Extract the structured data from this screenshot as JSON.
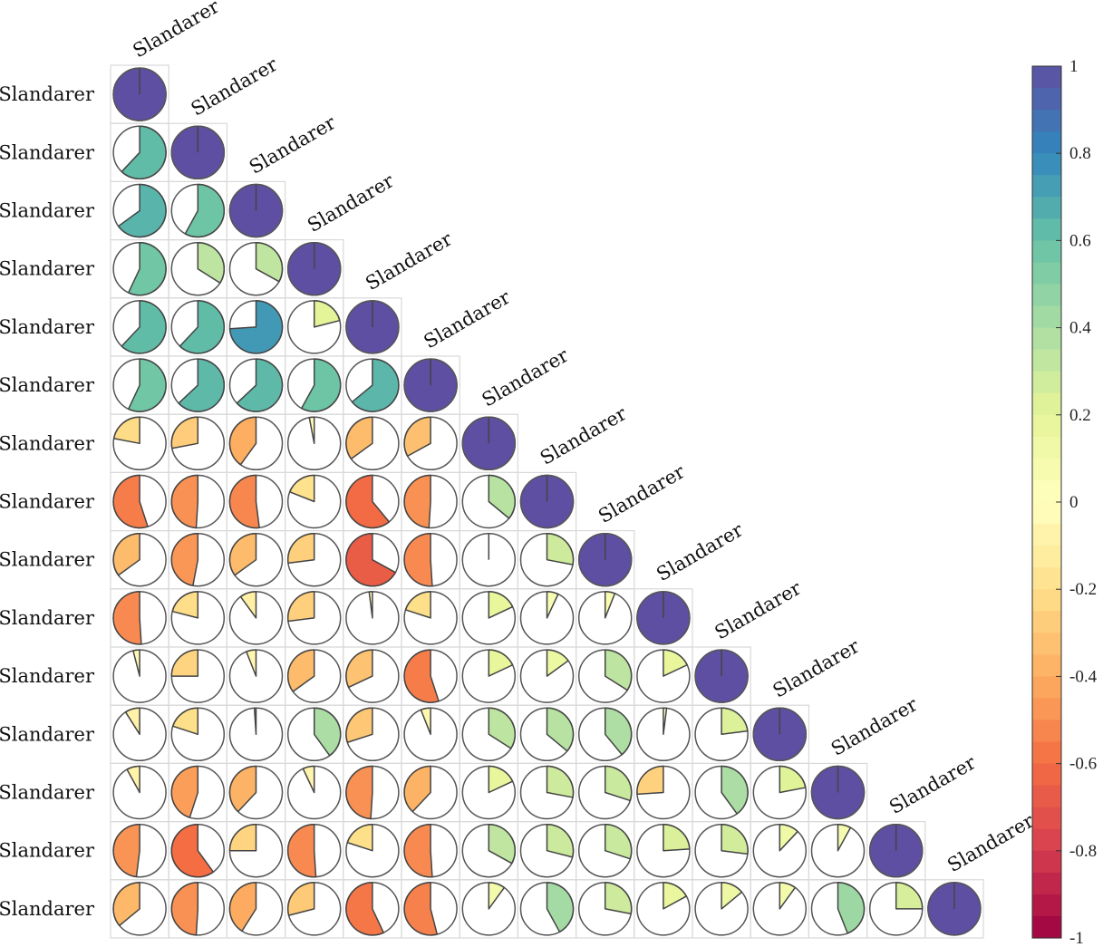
{
  "chart_data": {
    "type": "correlogram-pie",
    "variables": [
      "Slandarer",
      "Slandarer",
      "Slandarer",
      "Slandarer",
      "Slandarer",
      "Slandarer",
      "Slandarer",
      "Slandarer",
      "Slandarer",
      "Slandarer",
      "Slandarer",
      "Slandarer",
      "Slandarer",
      "Slandarer",
      "Slandarer"
    ],
    "matrix_lower": [
      [
        1.0
      ],
      [
        0.62,
        1.0
      ],
      [
        0.65,
        0.58,
        1.0
      ],
      [
        0.57,
        0.34,
        0.33,
        1.0
      ],
      [
        0.62,
        0.62,
        0.74,
        0.21,
        1.0
      ],
      [
        0.57,
        0.63,
        0.63,
        0.58,
        0.64,
        1.0
      ],
      [
        -0.22,
        -0.28,
        -0.4,
        -0.03,
        -0.35,
        -0.33,
        1.0
      ],
      [
        -0.55,
        -0.49,
        -0.52,
        -0.19,
        -0.61,
        -0.49,
        0.36,
        1.0
      ],
      [
        -0.35,
        -0.47,
        -0.35,
        -0.27,
        -0.67,
        -0.51,
        0.0,
        0.28,
        1.0
      ],
      [
        -0.51,
        -0.21,
        -0.1,
        -0.27,
        -0.02,
        -0.2,
        0.18,
        0.07,
        0.06,
        1.0
      ],
      [
        -0.04,
        -0.25,
        -0.06,
        -0.35,
        -0.32,
        -0.55,
        0.18,
        0.15,
        0.34,
        0.18,
        1.0
      ],
      [
        -0.09,
        -0.2,
        -0.01,
        0.4,
        -0.3,
        -0.06,
        0.34,
        0.36,
        0.39,
        0.02,
        0.23,
        1.0
      ],
      [
        -0.08,
        -0.45,
        -0.38,
        -0.07,
        -0.49,
        -0.38,
        0.18,
        0.28,
        0.3,
        -0.26,
        0.4,
        0.22,
        1.0
      ],
      [
        -0.48,
        -0.6,
        -0.25,
        -0.51,
        -0.2,
        -0.51,
        0.33,
        0.29,
        0.3,
        0.24,
        0.27,
        0.12,
        0.08,
        1.0
      ],
      [
        -0.36,
        -0.49,
        -0.41,
        -0.29,
        -0.57,
        -0.54,
        0.1,
        0.42,
        0.28,
        0.17,
        0.14,
        0.1,
        0.44,
        0.25,
        1.0
      ]
    ],
    "colorbar": {
      "ticks": [
        "1",
        "0.8",
        "0.6",
        "0.4",
        "0.2",
        "0",
        "-0.2",
        "-0.4",
        "-0.6",
        "-0.8",
        "-1"
      ],
      "ylim": [
        -1,
        1
      ]
    },
    "colors": {
      "neg_end": "#9e0142",
      "zero": "#ffffbf",
      "pos_end": "#5e4fa2"
    }
  }
}
